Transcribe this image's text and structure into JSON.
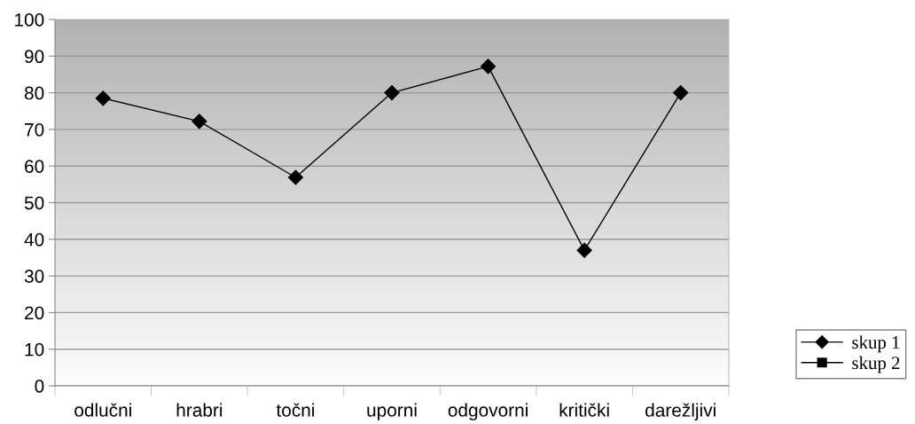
{
  "chart_data": {
    "type": "line",
    "categories": [
      "odlučni",
      "hrabri",
      "točni",
      "uporni",
      "odgovorni",
      "kritički",
      "darežljivi"
    ],
    "series": [
      {
        "name": "skup 1",
        "color": "#000000",
        "marker": "diamond",
        "values": [
          78.5,
          72.2,
          56.9,
          80,
          87.2,
          37,
          80
        ]
      },
      {
        "name": "skup 2",
        "color": "#000000",
        "marker": "square",
        "values": [
          null,
          null,
          null,
          null,
          null,
          null,
          null
        ]
      }
    ],
    "ylim": [
      0,
      100
    ],
    "yticks": [
      0,
      10,
      20,
      30,
      40,
      50,
      60,
      70,
      80,
      90,
      100
    ],
    "grid": "y",
    "legend": "right",
    "line_style": "solid"
  }
}
